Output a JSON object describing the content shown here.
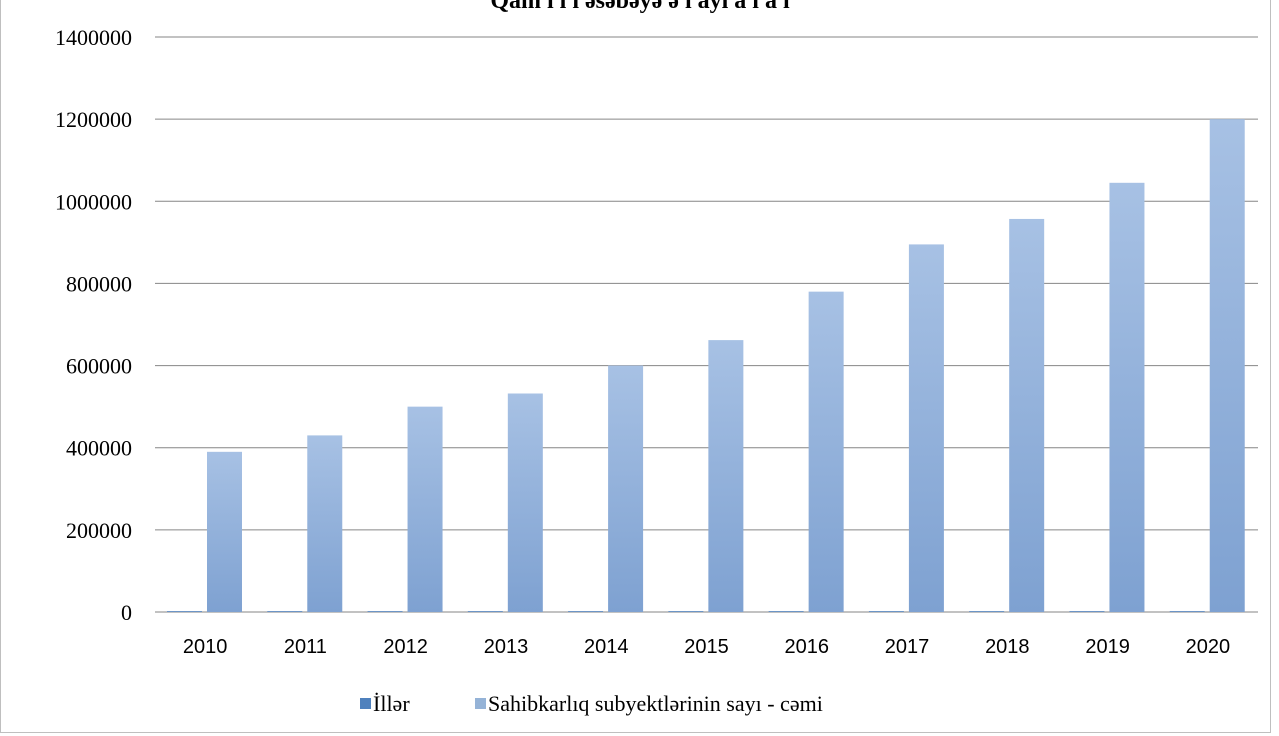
{
  "chart_data": {
    "type": "bar",
    "title": "Qam  ı   ı    ı     əsəbəyə    ə    ı  ayı   a  ı   a   ı",
    "categories": [
      "2010",
      "2011",
      "2012",
      "2013",
      "2014",
      "2015",
      "2016",
      "2017",
      "2018",
      "2019",
      "2020"
    ],
    "series": [
      {
        "name": "İllər",
        "color": "#4f81bd",
        "values": [
          2010,
          2011,
          2012,
          2013,
          2014,
          2015,
          2016,
          2017,
          2018,
          2019,
          2020
        ]
      },
      {
        "name": "Sahibkarlıq subyektlərinin sayı - cəmi",
        "color": "#95b3d7",
        "values": [
          390000,
          430000,
          500000,
          532000,
          600000,
          662000,
          780000,
          895000,
          957000,
          1045000,
          1200000
        ]
      }
    ],
    "ylim": [
      0,
      1400000
    ],
    "yticks": [
      0,
      200000,
      400000,
      600000,
      800000,
      1000000,
      1200000,
      1400000
    ],
    "grid": true,
    "legend_position": "bottom"
  }
}
